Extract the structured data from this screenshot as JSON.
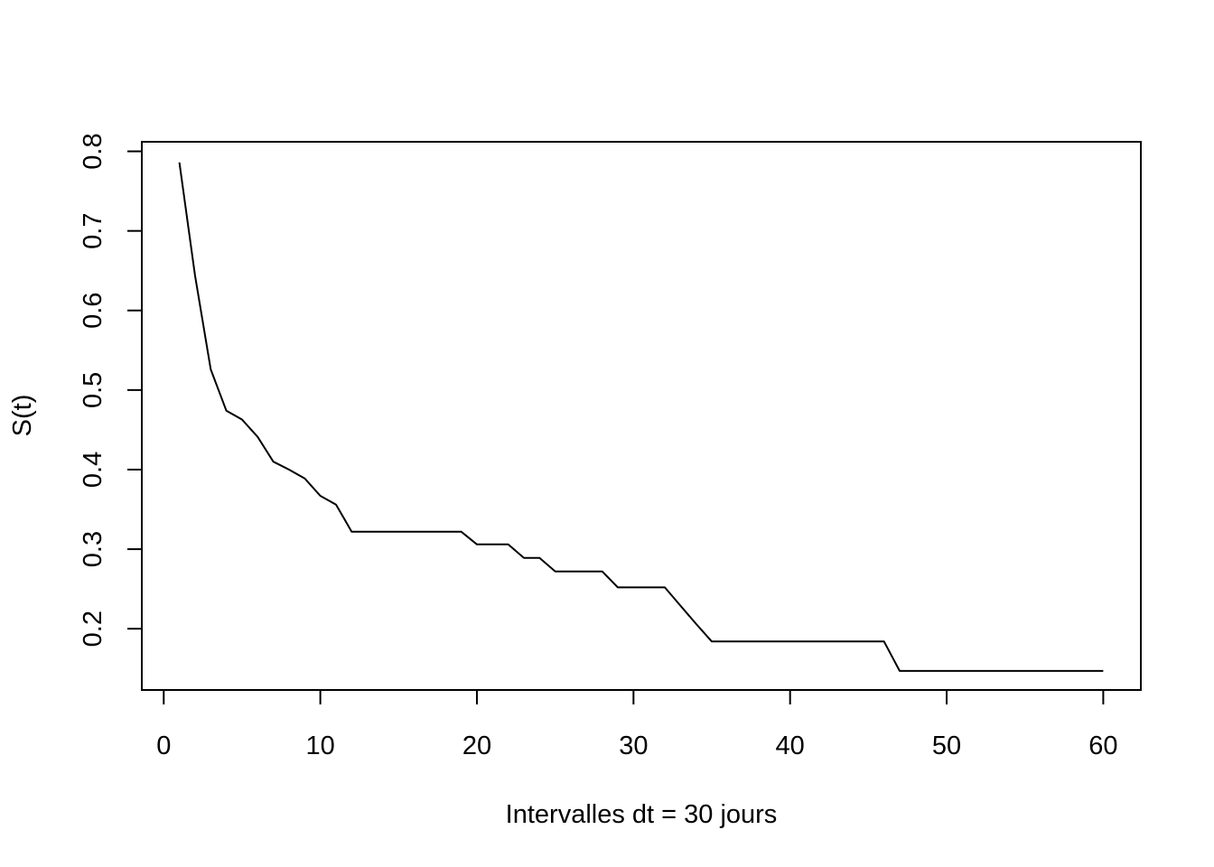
{
  "chart_data": {
    "type": "line",
    "title": "",
    "xlabel": "Intervalles dt = 30 jours",
    "ylabel": "S(t)",
    "xlim": [
      -1.4,
      62.4
    ],
    "ylim": [
      0.123,
      0.812
    ],
    "x_ticks": [
      0,
      10,
      20,
      30,
      40,
      50,
      60
    ],
    "x_tick_labels": [
      "0",
      "10",
      "20",
      "30",
      "40",
      "50",
      "60"
    ],
    "y_ticks": [
      0.2,
      0.3,
      0.4,
      0.5,
      0.6,
      0.7,
      0.8
    ],
    "y_tick_labels": [
      "0.2",
      "0.3",
      "0.4",
      "0.5",
      "0.6",
      "0.7",
      "0.8"
    ],
    "grid": false,
    "legend": "none",
    "line_color": "#000000",
    "series": [
      {
        "x": [
          1,
          2,
          3,
          4,
          5,
          6,
          7,
          8,
          9,
          10,
          11,
          12,
          13,
          14,
          15,
          16,
          17,
          18,
          19,
          20,
          21,
          22,
          23,
          24,
          25,
          26,
          27,
          28,
          29,
          30,
          31,
          32,
          33,
          34,
          35,
          36,
          37,
          38,
          39,
          40,
          41,
          42,
          43,
          44,
          45,
          46,
          47,
          48,
          49,
          50,
          51,
          52,
          53,
          54,
          55,
          56,
          57,
          58,
          59,
          60
        ],
        "y": [
          0.786,
          0.644,
          0.526,
          0.474,
          0.463,
          0.441,
          0.41,
          0.4,
          0.389,
          0.367,
          0.356,
          0.322,
          0.322,
          0.322,
          0.322,
          0.322,
          0.322,
          0.322,
          0.322,
          0.306,
          0.306,
          0.306,
          0.289,
          0.289,
          0.272,
          0.272,
          0.272,
          0.272,
          0.252,
          0.252,
          0.252,
          0.252,
          0.229,
          0.206,
          0.184,
          0.184,
          0.184,
          0.184,
          0.184,
          0.184,
          0.184,
          0.184,
          0.184,
          0.184,
          0.184,
          0.184,
          0.147,
          0.147,
          0.147,
          0.147,
          0.147,
          0.147,
          0.147,
          0.147,
          0.147,
          0.147,
          0.147,
          0.147,
          0.147,
          0.147
        ]
      }
    ]
  }
}
